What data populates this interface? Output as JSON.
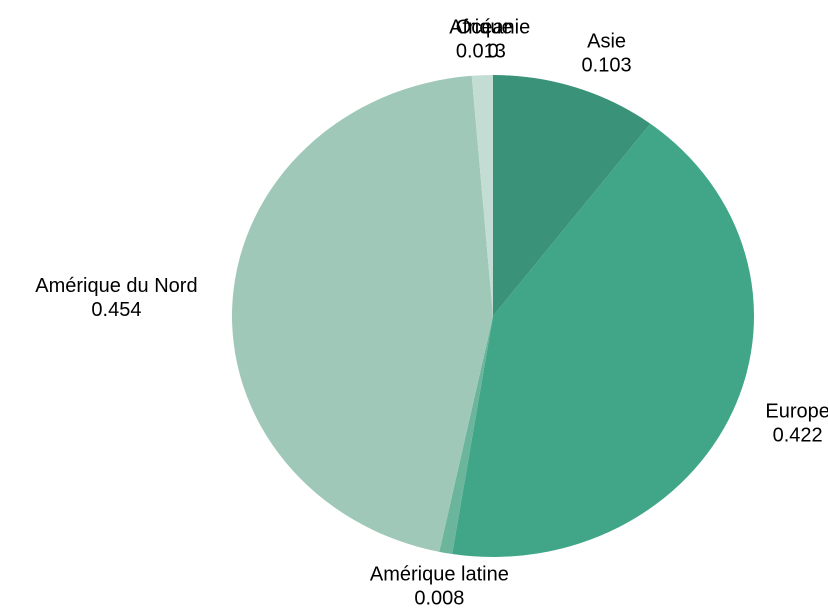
{
  "chart_data": {
    "type": "pie",
    "categories": [
      "Asie",
      "Europe",
      "Amérique latine",
      "Amérique du Nord",
      "Afrique",
      "Océanie"
    ],
    "values": [
      0.103,
      0.422,
      0.008,
      0.454,
      0.013,
      0
    ],
    "colors": [
      "#3a9278",
      "#41a587",
      "#6ab59b",
      "#9fc8b8",
      "#c4ddd4",
      "#d5e8e0"
    ]
  }
}
